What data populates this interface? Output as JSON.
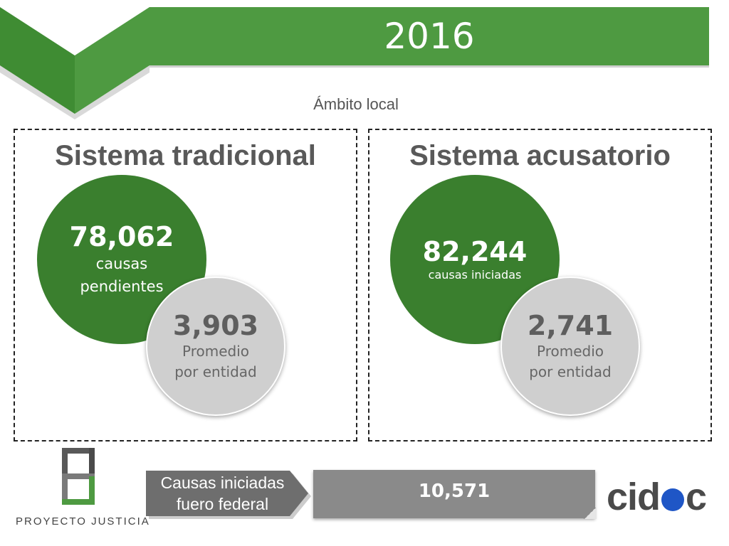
{
  "header": {
    "year": "2016",
    "subtitle": "Ámbito local",
    "colors": {
      "banner_green": "#4e9a41",
      "banner_dark": "#3f8c33"
    }
  },
  "panels": [
    {
      "title": "Sistema tradicional",
      "main_value": "78,062",
      "main_label_1": "causas",
      "main_label_2": "pendientes",
      "avg_value": "3,903",
      "avg_label_1": "Promedio",
      "avg_label_2": "por entidad"
    },
    {
      "title": "Sistema acusatorio",
      "main_value": "82,244",
      "main_label_1": "causas iniciadas",
      "avg_value": "2,741",
      "avg_label_1": "Promedio",
      "avg_label_2": "por entidad"
    }
  ],
  "footer": {
    "arrow_label_1": "Causas iniciadas",
    "arrow_label_2": "fuero federal",
    "federal_total": "10,571",
    "logo_left": "PROYECTO JUSTICIA",
    "logo_right_a": "cid",
    "logo_right_b": "c",
    "colors": {
      "circle_green": "#3a7f2e",
      "circle_gray": "#cfcfcf",
      "box_gray": "#8a8a8a",
      "cidac_blue": "#1f56c6"
    }
  }
}
